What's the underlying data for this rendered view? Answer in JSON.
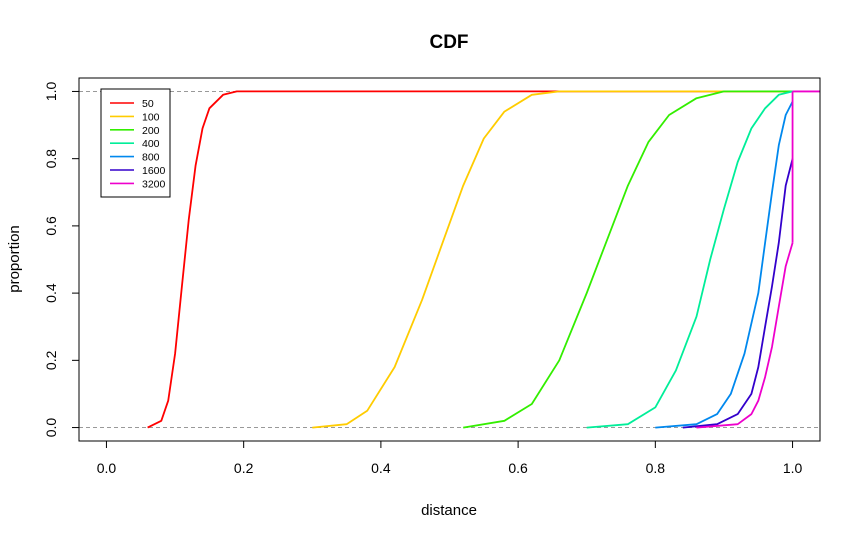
{
  "chart_data": {
    "type": "line",
    "title": "CDF",
    "xlabel": "distance",
    "ylabel": "proportion",
    "xlim": [
      -0.04,
      1.04
    ],
    "ylim": [
      -0.04,
      1.04
    ],
    "x_ticks": [
      "0.0",
      "0.2",
      "0.4",
      "0.6",
      "0.8",
      "1.0"
    ],
    "y_ticks": [
      "0.0",
      "0.2",
      "0.4",
      "0.6",
      "0.8",
      "1.0"
    ],
    "reference_lines": [
      0,
      1
    ],
    "legend_position": "top-left",
    "series": [
      {
        "name": "50",
        "color": "#ff0000",
        "points": [
          [
            0.06,
            0.0
          ],
          [
            0.08,
            0.02
          ],
          [
            0.09,
            0.08
          ],
          [
            0.1,
            0.22
          ],
          [
            0.11,
            0.42
          ],
          [
            0.12,
            0.62
          ],
          [
            0.13,
            0.78
          ],
          [
            0.14,
            0.89
          ],
          [
            0.15,
            0.95
          ],
          [
            0.17,
            0.99
          ],
          [
            0.19,
            1.0
          ],
          [
            1.0,
            1.0
          ]
        ]
      },
      {
        "name": "100",
        "color": "#ffcc00",
        "points": [
          [
            0.3,
            0.0
          ],
          [
            0.35,
            0.01
          ],
          [
            0.38,
            0.05
          ],
          [
            0.42,
            0.18
          ],
          [
            0.46,
            0.38
          ],
          [
            0.49,
            0.55
          ],
          [
            0.52,
            0.72
          ],
          [
            0.55,
            0.86
          ],
          [
            0.58,
            0.94
          ],
          [
            0.62,
            0.99
          ],
          [
            0.66,
            1.0
          ],
          [
            1.0,
            1.0
          ]
        ]
      },
      {
        "name": "200",
        "color": "#33ee00",
        "points": [
          [
            0.52,
            0.0
          ],
          [
            0.58,
            0.02
          ],
          [
            0.62,
            0.07
          ],
          [
            0.66,
            0.2
          ],
          [
            0.7,
            0.4
          ],
          [
            0.73,
            0.56
          ],
          [
            0.76,
            0.72
          ],
          [
            0.79,
            0.85
          ],
          [
            0.82,
            0.93
          ],
          [
            0.86,
            0.98
          ],
          [
            0.9,
            1.0
          ],
          [
            1.0,
            1.0
          ]
        ]
      },
      {
        "name": "400",
        "color": "#00ee99",
        "points": [
          [
            0.7,
            0.0
          ],
          [
            0.76,
            0.01
          ],
          [
            0.8,
            0.06
          ],
          [
            0.83,
            0.17
          ],
          [
            0.86,
            0.33
          ],
          [
            0.88,
            0.5
          ],
          [
            0.9,
            0.65
          ],
          [
            0.92,
            0.79
          ],
          [
            0.94,
            0.89
          ],
          [
            0.96,
            0.95
          ],
          [
            0.98,
            0.99
          ],
          [
            1.0,
            1.0
          ]
        ]
      },
      {
        "name": "800",
        "color": "#0088ee",
        "points": [
          [
            0.8,
            0.0
          ],
          [
            0.86,
            0.01
          ],
          [
            0.89,
            0.04
          ],
          [
            0.91,
            0.1
          ],
          [
            0.93,
            0.22
          ],
          [
            0.95,
            0.4
          ],
          [
            0.96,
            0.55
          ],
          [
            0.97,
            0.7
          ],
          [
            0.98,
            0.84
          ],
          [
            0.99,
            0.93
          ],
          [
            1.0,
            0.97
          ]
        ]
      },
      {
        "name": "1600",
        "color": "#3300cc",
        "points": [
          [
            0.84,
            0.0
          ],
          [
            0.89,
            0.01
          ],
          [
            0.92,
            0.04
          ],
          [
            0.94,
            0.1
          ],
          [
            0.95,
            0.18
          ],
          [
            0.96,
            0.3
          ],
          [
            0.97,
            0.42
          ],
          [
            0.98,
            0.55
          ],
          [
            0.99,
            0.72
          ],
          [
            1.0,
            0.8
          ]
        ]
      },
      {
        "name": "3200",
        "color": "#ee00cc",
        "points": [
          [
            0.86,
            0.0
          ],
          [
            0.92,
            0.01
          ],
          [
            0.94,
            0.04
          ],
          [
            0.95,
            0.08
          ],
          [
            0.96,
            0.15
          ],
          [
            0.97,
            0.24
          ],
          [
            0.98,
            0.36
          ],
          [
            0.99,
            0.48
          ],
          [
            1.0,
            0.55
          ]
        ]
      }
    ]
  }
}
